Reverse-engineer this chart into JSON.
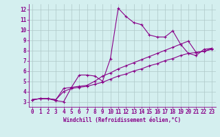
{
  "xlabel": "Windchill (Refroidissement éolien,°C)",
  "background_color": "#d4efef",
  "grid_color": "#aec8c8",
  "line_color": "#880088",
  "xlim": [
    -0.5,
    23.5
  ],
  "ylim": [
    2.5,
    12.5
  ],
  "xticks": [
    0,
    1,
    2,
    3,
    4,
    5,
    6,
    7,
    8,
    9,
    10,
    11,
    12,
    13,
    14,
    15,
    16,
    17,
    18,
    19,
    20,
    21,
    22,
    23
  ],
  "yticks": [
    3,
    4,
    5,
    6,
    7,
    8,
    9,
    10,
    11,
    12
  ],
  "line1_x": [
    0,
    1,
    2,
    3,
    4,
    5,
    6,
    7,
    8,
    9,
    10,
    11,
    12,
    13,
    14,
    15,
    16,
    17,
    18,
    19,
    20,
    21,
    22,
    23
  ],
  "line1_y": [
    3.2,
    3.3,
    3.3,
    3.1,
    3.0,
    4.4,
    5.6,
    5.6,
    5.5,
    5.0,
    7.2,
    12.1,
    11.3,
    10.7,
    10.5,
    9.5,
    9.3,
    9.3,
    9.9,
    8.6,
    7.7,
    7.5,
    8.1,
    8.2
  ],
  "line2_x": [
    0,
    1,
    2,
    3,
    4,
    5,
    6,
    7,
    8,
    9,
    10,
    11,
    12,
    13,
    14,
    15,
    16,
    17,
    18,
    19,
    20,
    21,
    22,
    23
  ],
  "line2_y": [
    3.2,
    3.3,
    3.3,
    3.2,
    4.3,
    4.4,
    4.5,
    4.6,
    5.0,
    5.5,
    5.8,
    6.2,
    6.5,
    6.8,
    7.1,
    7.4,
    7.7,
    8.0,
    8.3,
    8.6,
    8.9,
    7.8,
    7.9,
    8.2
  ],
  "line3_x": [
    0,
    1,
    2,
    3,
    4,
    5,
    6,
    7,
    8,
    9,
    10,
    11,
    12,
    13,
    14,
    15,
    16,
    17,
    18,
    19,
    20,
    21,
    22,
    23
  ],
  "line3_y": [
    3.2,
    3.3,
    3.3,
    3.2,
    4.0,
    4.3,
    4.4,
    4.5,
    4.7,
    4.9,
    5.2,
    5.5,
    5.7,
    6.0,
    6.2,
    6.5,
    6.7,
    7.0,
    7.2,
    7.5,
    7.7,
    7.8,
    7.9,
    8.1
  ],
  "tick_fontsize": 5.5,
  "xlabel_fontsize": 5.5
}
